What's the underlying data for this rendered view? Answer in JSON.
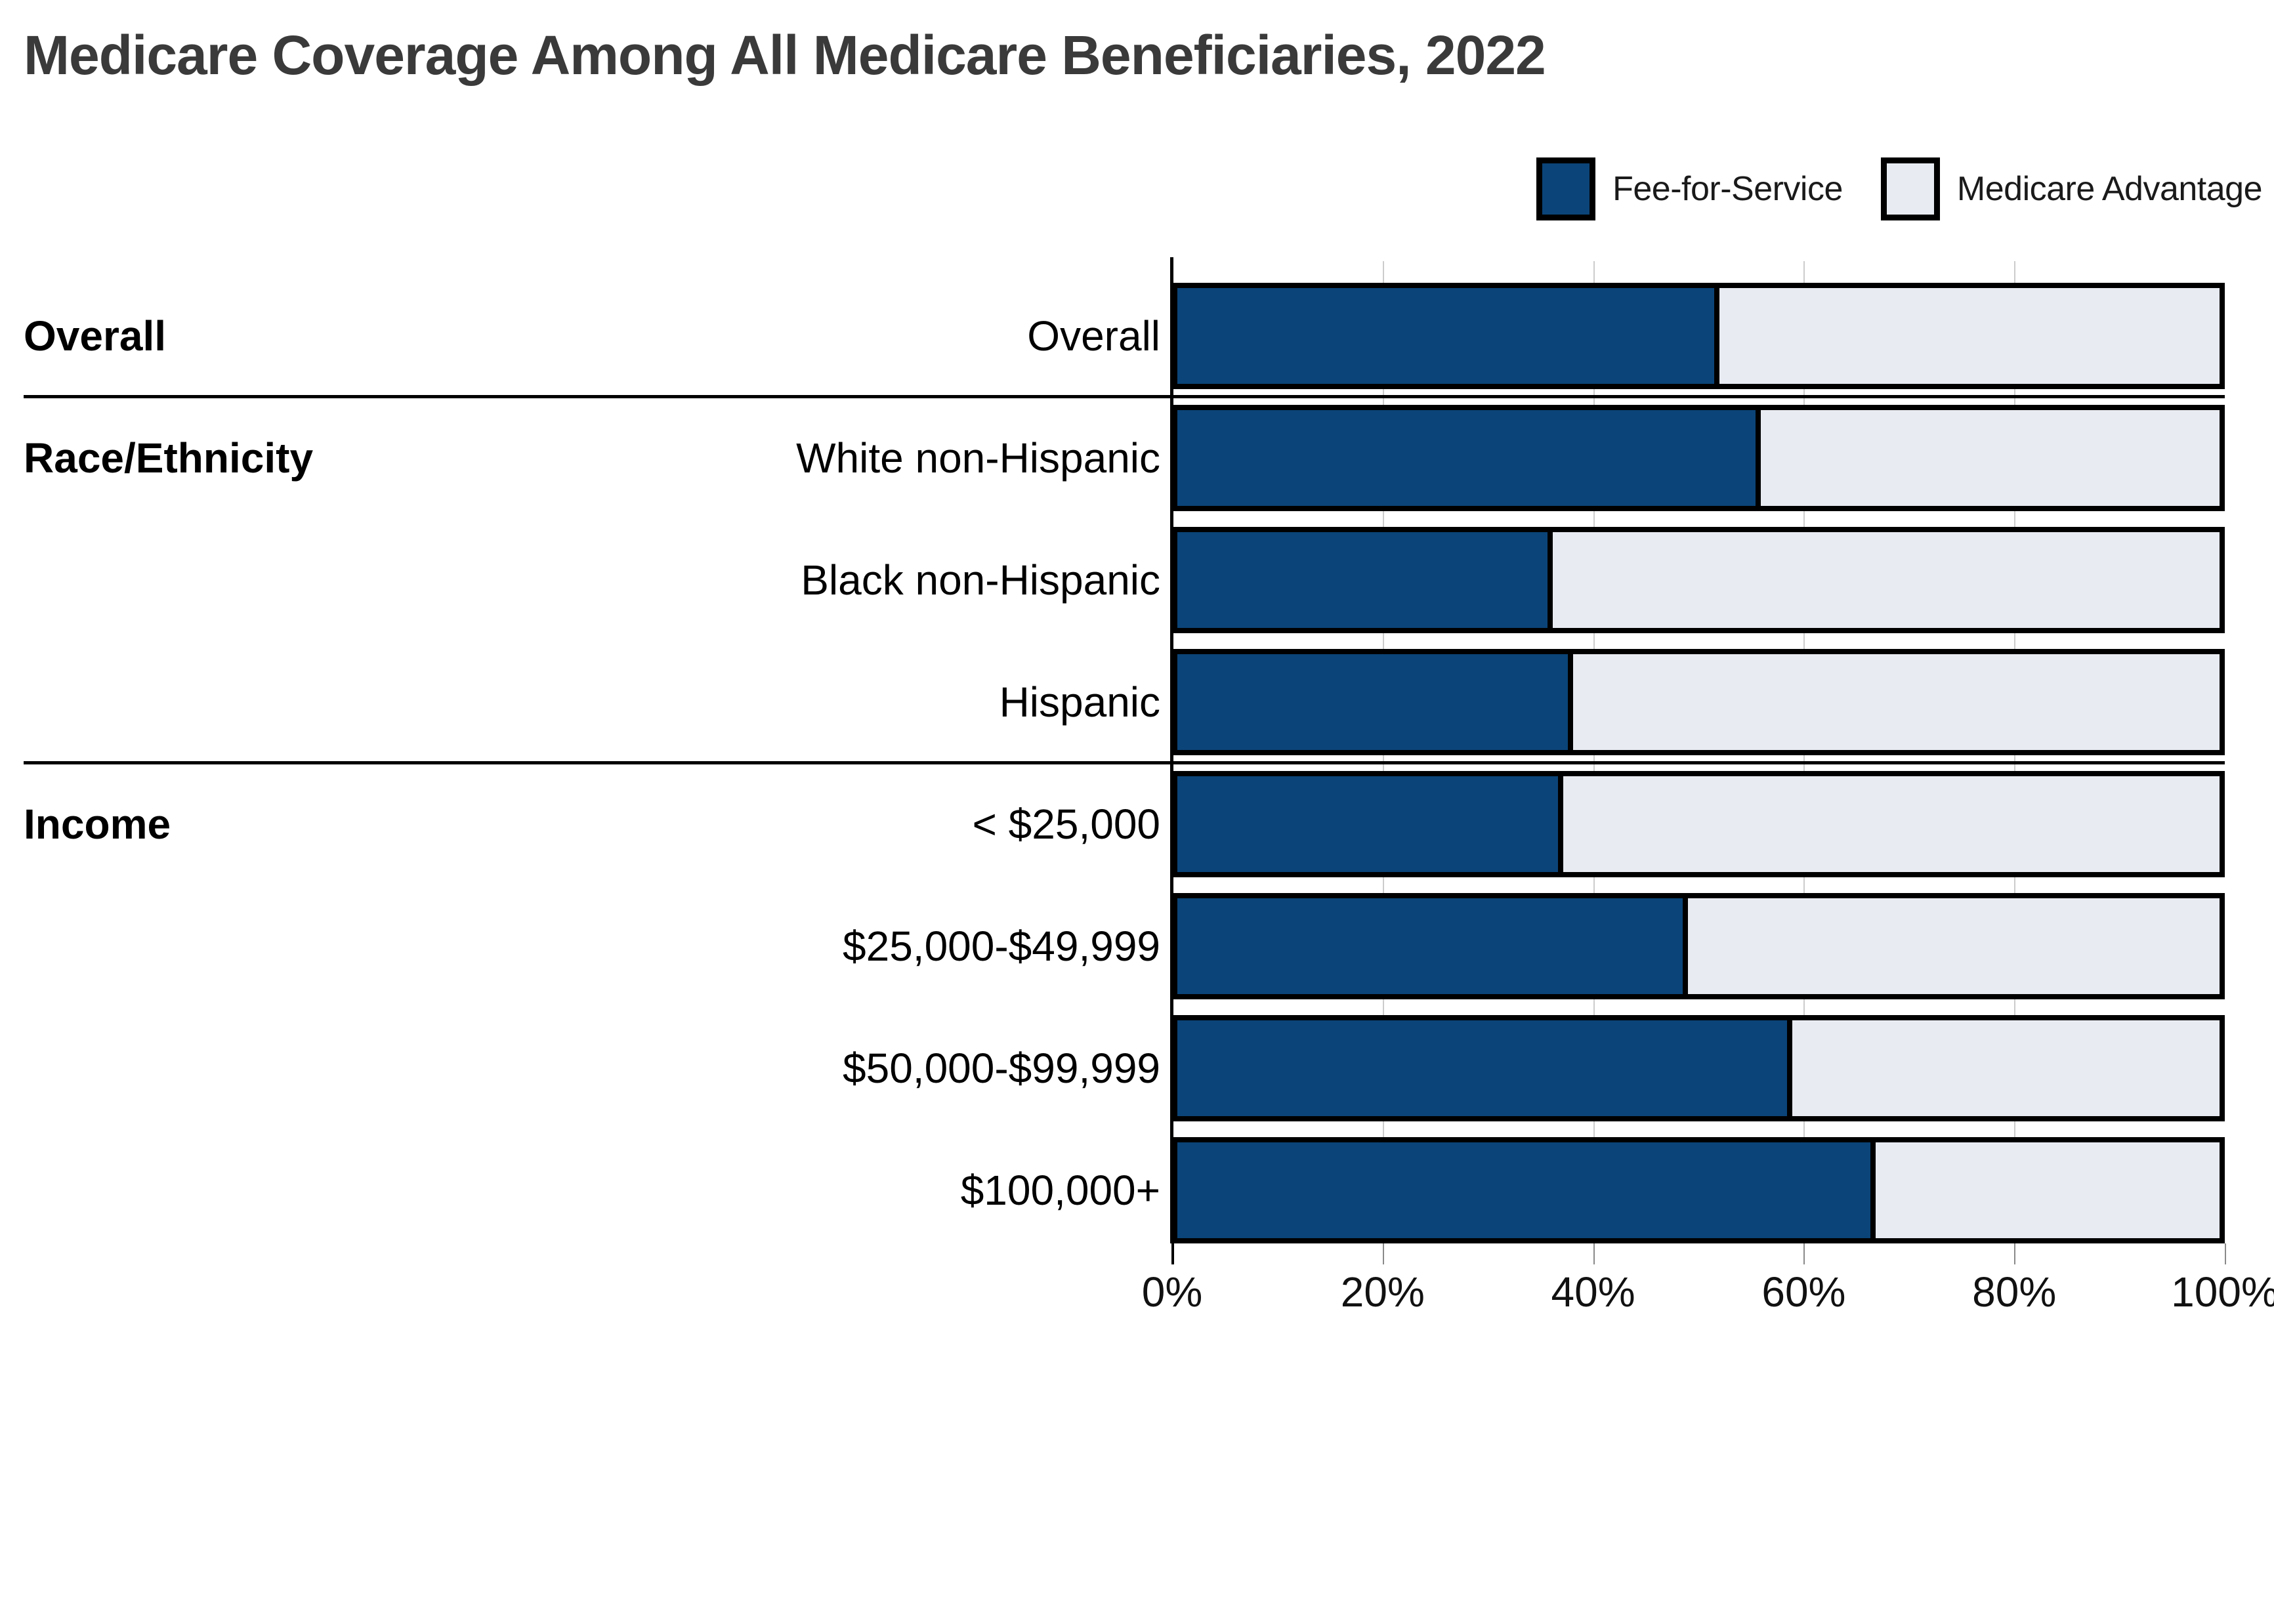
{
  "title": "Medicare Coverage Among All Medicare Beneficiaries, 2022",
  "legend": [
    {
      "label": "Fee-for-Service",
      "color": "#0b4478"
    },
    {
      "label": "Medicare Advantage",
      "color": "#e8ebf2"
    }
  ],
  "sections": [
    {
      "label": "Overall",
      "row_index": 0
    },
    {
      "label": "Race/Ethnicity",
      "row_index": 1
    },
    {
      "label": "Income",
      "row_index": 4
    }
  ],
  "chart_data": {
    "type": "bar",
    "stacked": true,
    "orientation": "horizontal",
    "title": "Medicare Coverage Among All Medicare Beneficiaries, 2022",
    "categories": [
      "Overall",
      "White non-Hispanic",
      "Black non-Hispanic",
      "Hispanic",
      "< $25,000",
      "$25,000-$49,999",
      "$50,000-$99,999",
      "$100,000+"
    ],
    "series": [
      {
        "name": "Fee-for-Service",
        "color": "#0b4478",
        "values": [
          52,
          56,
          36,
          38,
          37,
          49,
          59,
          67
        ]
      },
      {
        "name": "Medicare Advantage",
        "color": "#e8ebf2",
        "values": [
          48,
          44,
          64,
          62,
          63,
          51,
          41,
          33
        ]
      }
    ],
    "x_axis": {
      "min": 0,
      "max": 100,
      "tick_values": [
        0,
        20,
        40,
        60,
        80,
        100
      ],
      "tick_labels": [
        "0%",
        "20%",
        "40%",
        "60%",
        "80%",
        "100%"
      ]
    },
    "grid": true,
    "legend_position": "top-right"
  }
}
